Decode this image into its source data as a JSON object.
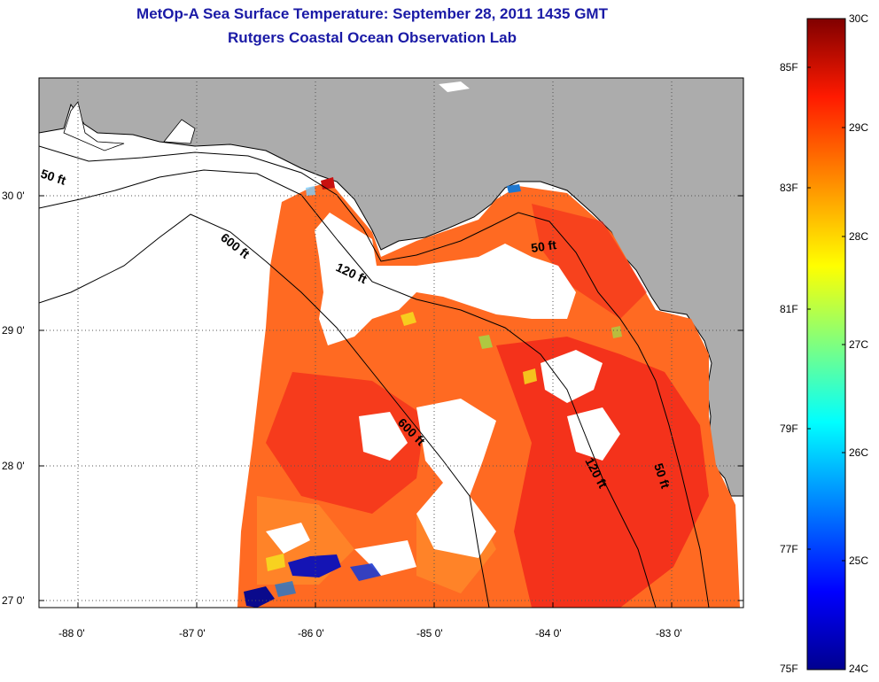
{
  "title": {
    "line1": "MetOp-A Sea Surface Temperature:  September 28, 2011 1435 GMT",
    "line2": "Rutgers Coastal Ocean Observation Lab"
  },
  "axes": {
    "lat_labels": [
      "30 0'",
      "29 0'",
      "28 0'",
      "27 0'"
    ],
    "lon_labels": [
      "-88 0'",
      "-87 0'",
      "-86 0'",
      "-85 0'",
      "-84 0'",
      "-83 0'"
    ]
  },
  "contours": {
    "fifty_west": "50 ft",
    "fifty_big_bend": "50 ft",
    "fifty_south": "50 ft",
    "onetwenty_north": "120 ft",
    "onetwenty_south": "120 ft",
    "sixhundred_north": "600 ft",
    "sixhundred_south": "600 ft"
  },
  "colorbar": {
    "fahrenheit_labels": [
      "85F",
      "83F",
      "81F",
      "79F",
      "77F",
      "75F"
    ],
    "celsius_labels": [
      "30C",
      "29C",
      "28C",
      "27C",
      "26C",
      "25C",
      "24C"
    ]
  },
  "colors": {
    "land": "#acacac",
    "warm": "#ff5a1a",
    "hot": "#f01e10",
    "cloud": "#ffffff",
    "title": "#1a1aa6"
  }
}
